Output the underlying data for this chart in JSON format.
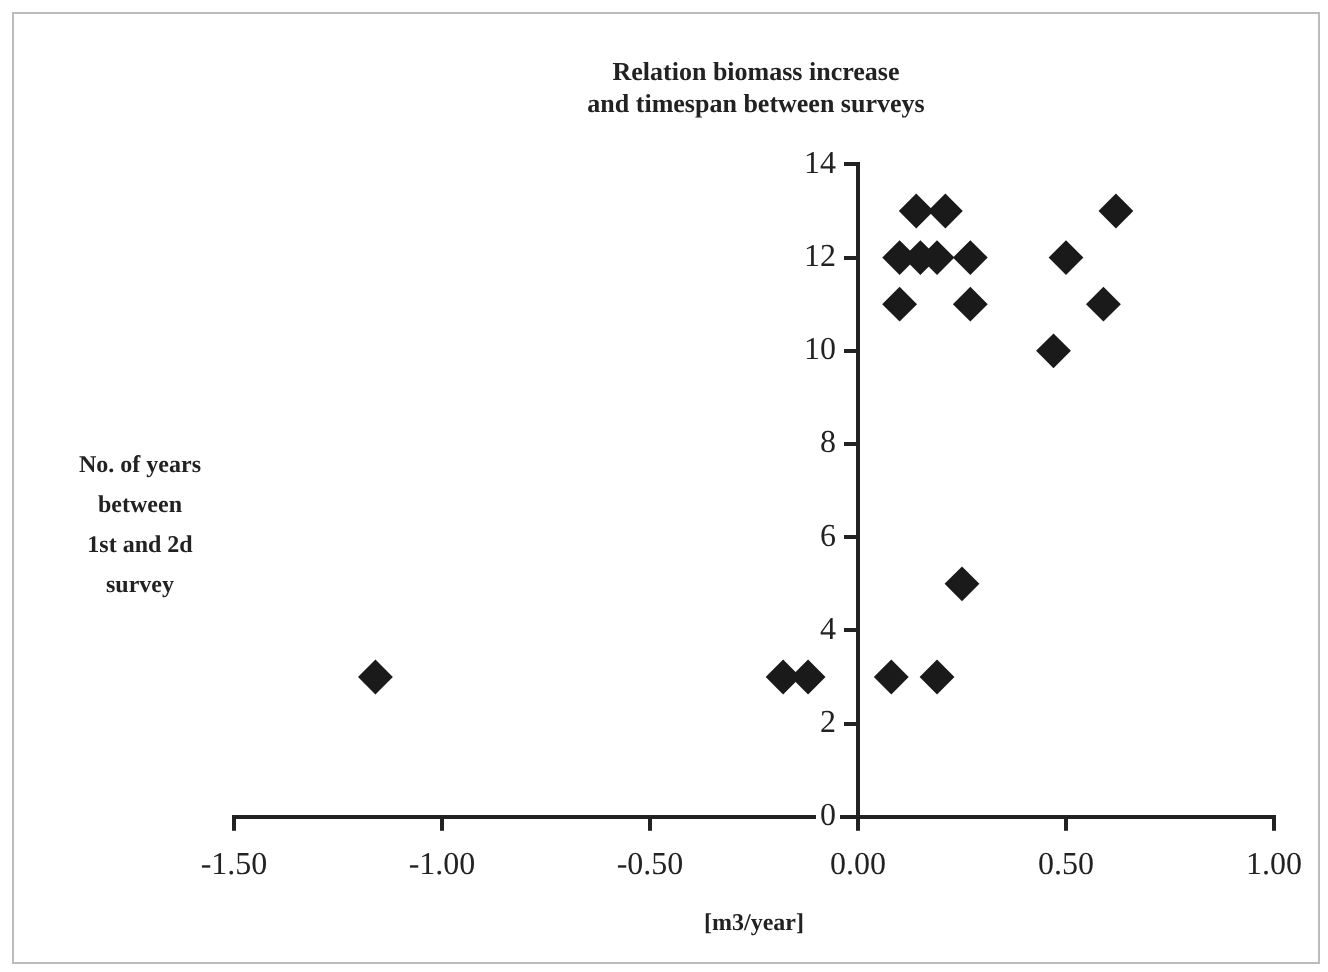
{
  "chart_data": {
    "type": "scatter",
    "title": "Relation biomass increase\nand timespan between surveys",
    "xlabel": "[m3/year]",
    "ylabel": "No. of years\nbetween\n1st and 2d\nsurvey",
    "x": [
      -1.16,
      -0.18,
      -0.12,
      0.08,
      0.19,
      0.25,
      0.1,
      0.1,
      0.14,
      0.15,
      0.19,
      0.21,
      0.27,
      0.27,
      0.47,
      0.5,
      0.59,
      0.62
    ],
    "series": [
      {
        "color": "#1a1a1a",
        "values": [
          3,
          3,
          3,
          3,
          3,
          5,
          11,
          12,
          13,
          12,
          12,
          13,
          12,
          11,
          10,
          12,
          11,
          13
        ]
      }
    ],
    "xlim": [
      -1.5,
      1.0
    ],
    "xticks": [
      {
        "value": -1.5,
        "label": "-1.50"
      },
      {
        "value": -1,
        "label": "-1.00"
      },
      {
        "value": -0.5,
        "label": "-0.50"
      },
      {
        "value": 0,
        "label": "0.00"
      },
      {
        "value": 0.5,
        "label": "0.50"
      },
      {
        "value": 1,
        "label": "1.00"
      }
    ],
    "ylim": [
      0,
      14
    ],
    "yticks": [
      0,
      2,
      4,
      6,
      8,
      10,
      12,
      14
    ],
    "marker": "diamond",
    "grid": false,
    "legend": false
  }
}
